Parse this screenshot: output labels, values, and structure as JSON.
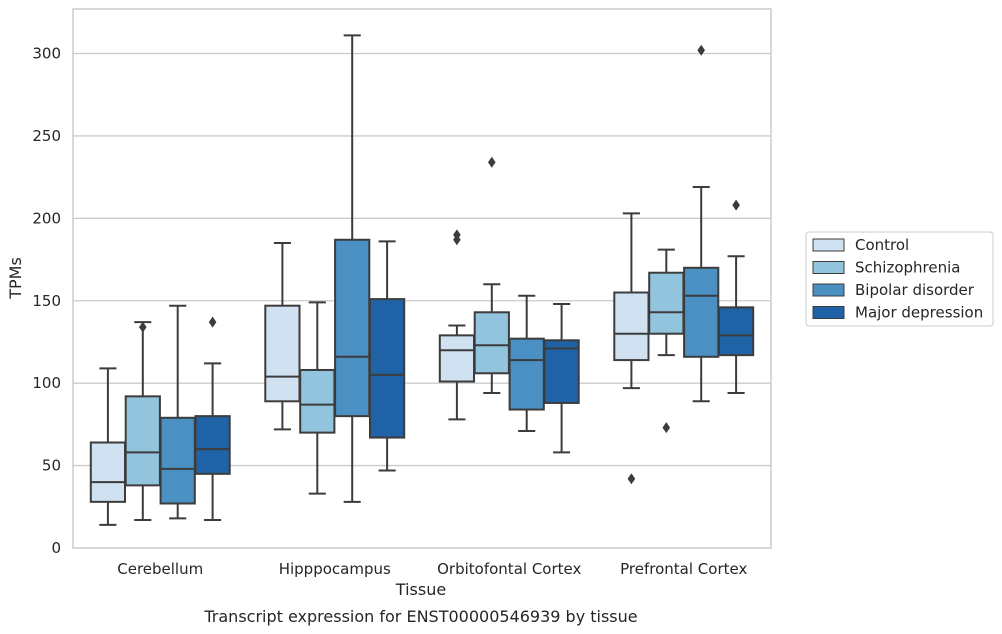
{
  "chart_data": {
    "type": "boxplot",
    "caption": "Transcript expression for ENST00000546939 by tissue",
    "xlabel": "Tissue",
    "ylabel": "TPMs",
    "ylim": [
      0,
      327
    ],
    "yticks": [
      0,
      50,
      100,
      150,
      200,
      250,
      300
    ],
    "grid": "horizontal",
    "legend_position": "right",
    "categories": [
      "Cerebellum",
      "Hipppocampus",
      "Orbitofontal Cortex",
      "Prefrontal Cortex"
    ],
    "series": [
      {
        "name": "Control",
        "color": "#d0e1f1",
        "boxes": [
          {
            "whislo": 14,
            "q1": 28,
            "med": 40,
            "q3": 64,
            "whishi": 109,
            "fliers": []
          },
          {
            "whislo": 72,
            "q1": 89,
            "med": 104,
            "q3": 147,
            "whishi": 185,
            "fliers": []
          },
          {
            "whislo": 78,
            "q1": 101,
            "med": 120,
            "q3": 129,
            "whishi": 135,
            "fliers": [
              187,
              190
            ]
          },
          {
            "whislo": 97,
            "q1": 114,
            "med": 130,
            "q3": 155,
            "whishi": 203,
            "fliers": [
              42
            ]
          }
        ]
      },
      {
        "name": "Schizophrenia",
        "color": "#93c4de",
        "boxes": [
          {
            "whislo": 17,
            "q1": 38,
            "med": 58,
            "q3": 92,
            "whishi": 137,
            "fliers": [
              134
            ]
          },
          {
            "whislo": 33,
            "q1": 70,
            "med": 87,
            "q3": 108,
            "whishi": 149,
            "fliers": []
          },
          {
            "whislo": 94,
            "q1": 106,
            "med": 123,
            "q3": 143,
            "whishi": 160,
            "fliers": [
              234
            ]
          },
          {
            "whislo": 117,
            "q1": 130,
            "med": 143,
            "q3": 167,
            "whishi": 181,
            "fliers": [
              73
            ]
          }
        ]
      },
      {
        "name": "Bipolar disorder",
        "color": "#4a90c3",
        "boxes": [
          {
            "whislo": 18,
            "q1": 27,
            "med": 48,
            "q3": 79,
            "whishi": 147,
            "fliers": []
          },
          {
            "whislo": 28,
            "q1": 80,
            "med": 116,
            "q3": 187,
            "whishi": 311,
            "fliers": []
          },
          {
            "whislo": 71,
            "q1": 84,
            "med": 114,
            "q3": 127,
            "whishi": 153,
            "fliers": []
          },
          {
            "whislo": 89,
            "q1": 116,
            "med": 153,
            "q3": 170,
            "whishi": 219,
            "fliers": [
              302
            ]
          }
        ]
      },
      {
        "name": "Major depression",
        "color": "#1f62a6",
        "boxes": [
          {
            "whislo": 17,
            "q1": 45,
            "med": 60,
            "q3": 80,
            "whishi": 112,
            "fliers": [
              137
            ]
          },
          {
            "whislo": 47,
            "q1": 67,
            "med": 105,
            "q3": 151,
            "whishi": 186,
            "fliers": []
          },
          {
            "whislo": 58,
            "q1": 88,
            "med": 121,
            "q3": 126,
            "whishi": 148,
            "fliers": []
          },
          {
            "whislo": 94,
            "q1": 117,
            "med": 129,
            "q3": 146,
            "whishi": 177,
            "fliers": [
              208
            ]
          }
        ]
      }
    ]
  }
}
